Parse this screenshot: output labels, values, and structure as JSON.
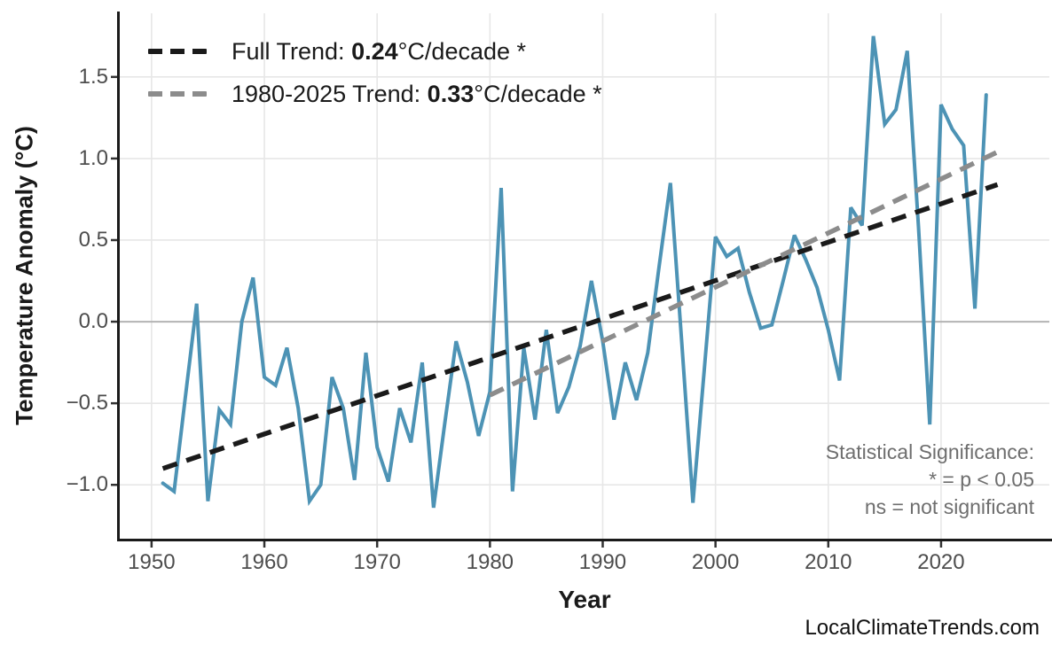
{
  "watermark": "LocalClimateTrends.com",
  "legend": {
    "full": {
      "prefix": "Full Trend: ",
      "value": "0.24",
      "suffix": "°C/decade *",
      "color": "#1a1a1a"
    },
    "recent": {
      "prefix": "1980-2025 Trend: ",
      "value": "0.33",
      "suffix": "°C/decade *",
      "color": "#8c8c8c"
    }
  },
  "annotations": {
    "stat_line1": "Statistical Significance:",
    "stat_line2": "* = p < 0.05",
    "stat_line3": "ns = not significant"
  },
  "chart_data": {
    "type": "line",
    "title": "",
    "xlabel": "Year",
    "ylabel": "Temperature Anomaly (°C)",
    "xlim": [
      1947.1,
      2029.6
    ],
    "ylim": [
      -1.33,
      1.89
    ],
    "grid": "major-only",
    "x_ticks": [
      1950,
      1960,
      1970,
      1980,
      1990,
      2000,
      2010,
      2020
    ],
    "x_tick_labels": [
      "1950",
      "1960",
      "1970",
      "1980",
      "1990",
      "2000",
      "2010",
      "2020"
    ],
    "y_ticks": [
      -1.0,
      -0.5,
      0.0,
      0.5,
      1.0,
      1.5
    ],
    "y_tick_labels": [
      "−1.0",
      "−0.5",
      "0.0",
      "0.5",
      "1.0",
      "1.5"
    ],
    "series": [
      {
        "name": "annual-temperature-anomaly",
        "color": "#4D93B5",
        "x": [
          1951,
          1952,
          1953,
          1954,
          1955,
          1956,
          1957,
          1958,
          1959,
          1960,
          1961,
          1962,
          1963,
          1964,
          1965,
          1966,
          1967,
          1968,
          1969,
          1970,
          1971,
          1972,
          1973,
          1974,
          1975,
          1976,
          1977,
          1978,
          1979,
          1980,
          1981,
          1982,
          1983,
          1984,
          1985,
          1986,
          1987,
          1988,
          1989,
          1990,
          1991,
          1992,
          1993,
          1994,
          1995,
          1996,
          1997,
          1998,
          1999,
          2000,
          2001,
          2002,
          2003,
          2004,
          2005,
          2006,
          2007,
          2008,
          2009,
          2010,
          2011,
          2012,
          2013,
          2014,
          2015,
          2016,
          2017,
          2018,
          2019,
          2020,
          2021,
          2022,
          2023,
          2024
        ],
        "values": [
          -0.99,
          -1.04,
          -0.46,
          0.11,
          -1.1,
          -0.54,
          -0.63,
          0.0,
          0.27,
          -0.34,
          -0.39,
          -0.16,
          -0.53,
          -1.1,
          -1.0,
          -0.34,
          -0.53,
          -0.97,
          -0.19,
          -0.77,
          -0.98,
          -0.53,
          -0.74,
          -0.25,
          -1.14,
          -0.62,
          -0.12,
          -0.37,
          -0.7,
          -0.43,
          0.82,
          -1.04,
          -0.16,
          -0.6,
          -0.05,
          -0.56,
          -0.4,
          -0.15,
          0.25,
          -0.12,
          -0.6,
          -0.25,
          -0.48,
          -0.19,
          0.34,
          0.85,
          -0.12,
          -1.11,
          -0.3,
          0.52,
          0.4,
          0.45,
          0.18,
          -0.04,
          -0.02,
          0.25,
          0.53,
          0.38,
          0.21,
          -0.05,
          -0.36,
          0.7,
          0.59,
          1.75,
          1.21,
          1.3,
          1.66,
          0.58,
          -0.63,
          1.33,
          1.18,
          1.08,
          0.08,
          1.39
        ]
      }
    ],
    "trend_lines": [
      {
        "name": "full-trend",
        "slope_per_decade": 0.24,
        "x1": 1951,
        "y1": -0.9,
        "x2": 2025,
        "y2": 0.84,
        "color": "#1a1a1a"
      },
      {
        "name": "1980-2025-trend",
        "slope_per_decade": 0.33,
        "x1": 1980,
        "y1": -0.45,
        "x2": 2025,
        "y2": 1.04,
        "color": "#8c8c8c"
      }
    ],
    "zero_line_color": "#b3b3b3",
    "legend_position": "top-left-inside"
  }
}
